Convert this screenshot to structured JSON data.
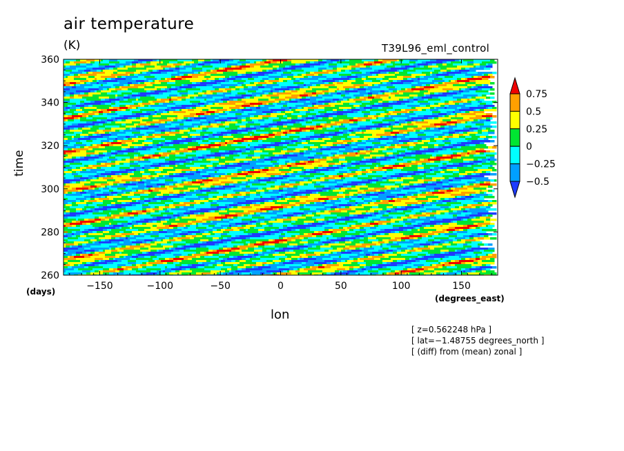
{
  "chart_data": {
    "type": "heatmap",
    "title": "air temperature",
    "units": "(K)",
    "run_label": "T39L96_eml_control",
    "xlabel": "lon",
    "xunits": "(degrees_east)",
    "ylabel": "time",
    "yunits": "(days)",
    "xlim": [
      -180,
      180
    ],
    "ylim": [
      260,
      360
    ],
    "x_ticks": [
      -150,
      -100,
      -50,
      0,
      50,
      100,
      150
    ],
    "x_tick_labels": [
      "−150",
      "−100",
      "−50",
      "0",
      "50",
      "100",
      "150"
    ],
    "y_ticks": [
      260,
      280,
      300,
      320,
      340,
      360
    ],
    "y_tick_labels": [
      "260",
      "280",
      "300",
      "320",
      "340",
      "360"
    ],
    "contour_levels": [
      -0.5,
      -0.25,
      0,
      0.25,
      0.5,
      0.75
    ],
    "colorbar_labels": [
      "0.75",
      "0.5",
      "0.25",
      "0",
      "−0.25",
      "−0.5"
    ],
    "colors": [
      "#1e3cff",
      "#00a0ff",
      "#00ffff",
      "#00e632",
      "#ffff00",
      "#ffa000",
      "#f00000"
    ],
    "field_description": "eastward-propagating anomaly bands, phase speed ~ 10 deg/day",
    "notes": [
      "[ z=0.562248 hPa ]",
      "[ lat=−1.48755 degrees_north ]",
      "[ (diff) from (mean) zonal ]"
    ]
  }
}
